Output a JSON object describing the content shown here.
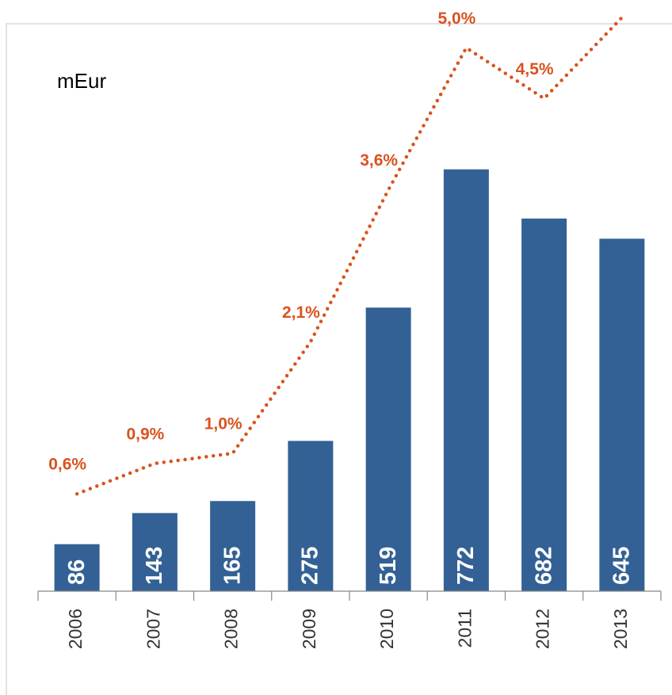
{
  "chart_data": {
    "type": "bar",
    "unit_label": "mEur",
    "categories": [
      "2006",
      "2007",
      "2008",
      "2009",
      "2010",
      "2011",
      "2012",
      "2013"
    ],
    "ylim": [
      0,
      1050
    ],
    "y2lim": [
      -0.36,
      5.3
    ],
    "series": [
      {
        "name": "mEur",
        "type": "bar",
        "color": "#336195",
        "values": [
          86,
          143,
          165,
          275,
          519,
          772,
          682,
          645
        ]
      },
      {
        "name": "%",
        "type": "line",
        "axis": "y2",
        "color": "#d9531e",
        "values": [
          0.6,
          0.9,
          1.0,
          2.1,
          3.6,
          5.0,
          4.5,
          5.3
        ],
        "value_labels": [
          "0,6%",
          "0,9%",
          "1,0%",
          "2,1%",
          "3,6%",
          "5,0%",
          "4,5%",
          null
        ]
      }
    ]
  }
}
